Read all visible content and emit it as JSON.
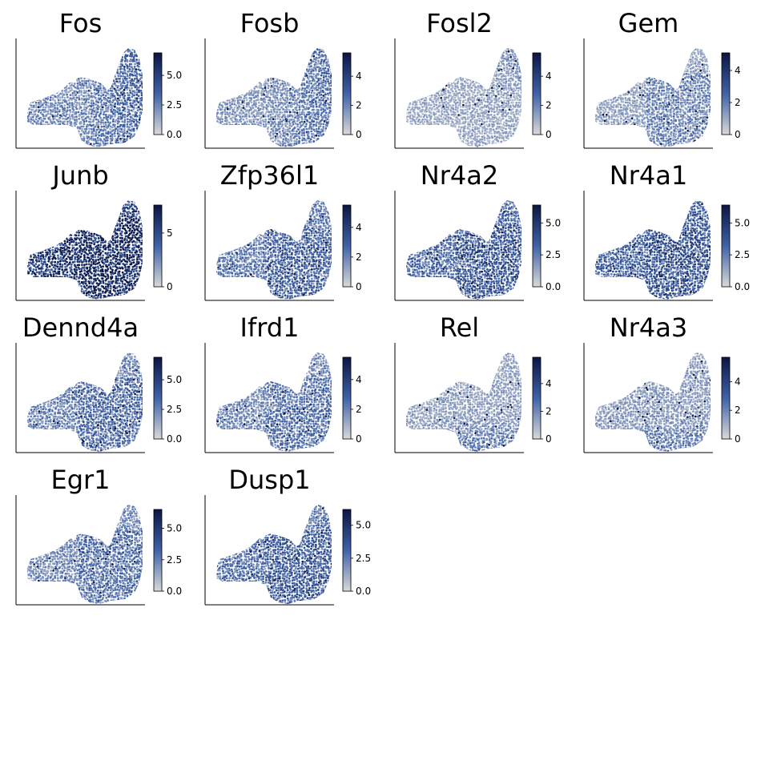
{
  "colors": {
    "low": "#d9d9d9",
    "mid": "#3f62a8",
    "high": "#0b1543",
    "axis": "#000000",
    "background": "#ffffff"
  },
  "chart_data": [
    {
      "type": "scatter",
      "title": "Fos",
      "colorbar": {
        "ticks": [
          "0.0",
          "2.5",
          "5.0"
        ],
        "tick_values": [
          0,
          2.5,
          5.0
        ],
        "max": 6.9
      },
      "intensity": 0.35,
      "hotspot": "right"
    },
    {
      "type": "scatter",
      "title": "Fosb",
      "colorbar": {
        "ticks": [
          "0",
          "2",
          "4"
        ],
        "tick_values": [
          0,
          2,
          4
        ],
        "max": 5.6
      },
      "intensity": 0.3,
      "hotspot": "right"
    },
    {
      "type": "scatter",
      "title": "Fosl2",
      "colorbar": {
        "ticks": [
          "0",
          "2",
          "4"
        ],
        "tick_values": [
          0,
          2,
          4
        ],
        "max": 5.6
      },
      "intensity": 0.22,
      "hotspot": "top-right"
    },
    {
      "type": "scatter",
      "title": "Gem",
      "colorbar": {
        "ticks": [
          "0",
          "2",
          "4"
        ],
        "tick_values": [
          0,
          2,
          4
        ],
        "max": 5.1
      },
      "intensity": 0.2,
      "hotspot": "center"
    },
    {
      "type": "scatter",
      "title": "Junb",
      "colorbar": {
        "ticks": [
          "0",
          "5"
        ],
        "tick_values": [
          0,
          5
        ],
        "max": 7.6
      },
      "intensity": 0.78,
      "hotspot": "center"
    },
    {
      "type": "scatter",
      "title": "Zfp36l1",
      "colorbar": {
        "ticks": [
          "0",
          "2",
          "4"
        ],
        "tick_values": [
          0,
          2,
          4
        ],
        "max": 5.5
      },
      "intensity": 0.38,
      "hotspot": "center"
    },
    {
      "type": "scatter",
      "title": "Nr4a2",
      "colorbar": {
        "ticks": [
          "0.0",
          "2.5",
          "5.0"
        ],
        "tick_values": [
          0,
          2.5,
          5.0
        ],
        "max": 6.4
      },
      "intensity": 0.45,
      "hotspot": "center"
    },
    {
      "type": "scatter",
      "title": "Nr4a1",
      "colorbar": {
        "ticks": [
          "0.0",
          "2.5",
          "5.0"
        ],
        "tick_values": [
          0,
          2.5,
          5.0
        ],
        "max": 6.4
      },
      "intensity": 0.48,
      "hotspot": "center"
    },
    {
      "type": "scatter",
      "title": "Dennd4a",
      "colorbar": {
        "ticks": [
          "0.0",
          "2.5",
          "5.0"
        ],
        "tick_values": [
          0,
          2.5,
          5.0
        ],
        "max": 6.9
      },
      "intensity": 0.33,
      "hotspot": "center"
    },
    {
      "type": "scatter",
      "title": "Ifrd1",
      "colorbar": {
        "ticks": [
          "0",
          "2",
          "4"
        ],
        "tick_values": [
          0,
          2,
          4
        ],
        "max": 5.5
      },
      "intensity": 0.3,
      "hotspot": "center"
    },
    {
      "type": "scatter",
      "title": "Rel",
      "colorbar": {
        "ticks": [
          "0",
          "2",
          "4"
        ],
        "tick_values": [
          0,
          2,
          4
        ],
        "max": 5.9
      },
      "intensity": 0.24,
      "hotspot": "bottom"
    },
    {
      "type": "scatter",
      "title": "Nr4a3",
      "colorbar": {
        "ticks": [
          "0",
          "2",
          "4"
        ],
        "tick_values": [
          0,
          2,
          4
        ],
        "max": 5.7
      },
      "intensity": 0.25,
      "hotspot": "bottom"
    },
    {
      "type": "scatter",
      "title": "Egr1",
      "colorbar": {
        "ticks": [
          "0.0",
          "2.5",
          "5.0"
        ],
        "tick_values": [
          0,
          2.5,
          5.0
        ],
        "max": 6.5
      },
      "intensity": 0.3,
      "hotspot": "center"
    },
    {
      "type": "scatter",
      "title": "Dusp1",
      "colorbar": {
        "ticks": [
          "0.0",
          "2.5",
          "5.0"
        ],
        "tick_values": [
          0,
          2.5,
          5.0
        ],
        "max": 6.2
      },
      "intensity": 0.42,
      "hotspot": "center"
    }
  ]
}
